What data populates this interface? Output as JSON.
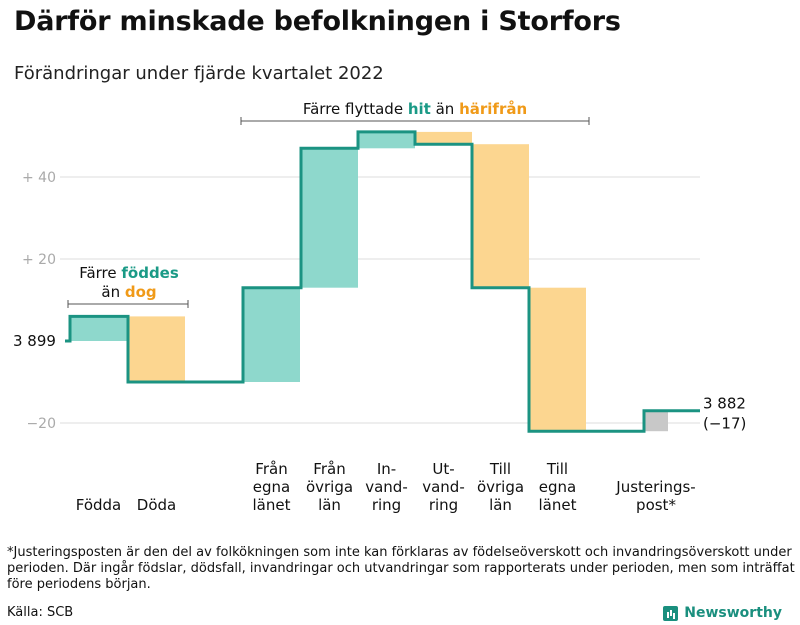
{
  "title": "Därför minskade befolkningen i Storfors",
  "subtitle": "Förändringar under fjärde kvartalet 2022",
  "chart_data": {
    "type": "waterfall",
    "start_value": 3899,
    "start_label": "3 899",
    "end_value": 3882,
    "end_label": "3 882",
    "end_change_label": "(−17)",
    "ylim": [
      -25,
      52
    ],
    "yticks": [
      {
        "value": 40,
        "label": "+ 40"
      },
      {
        "value": 20,
        "label": "+ 20"
      },
      {
        "value": -20,
        "label": "−20"
      }
    ],
    "grid": true,
    "steps": [
      {
        "label_lines": [
          "Födda"
        ],
        "change": 6,
        "kind": "in"
      },
      {
        "label_lines": [
          "Döda"
        ],
        "change": -16,
        "kind": "out"
      },
      {
        "label_lines": [
          "Från",
          "egna",
          "länet"
        ],
        "change": 23,
        "kind": "in"
      },
      {
        "label_lines": [
          "Från",
          "övriga",
          "län"
        ],
        "change": 34,
        "kind": "in"
      },
      {
        "label_lines": [
          "In-",
          "vand-",
          "ring"
        ],
        "change": 4,
        "kind": "in"
      },
      {
        "label_lines": [
          "Ut-",
          "vand-",
          "ring"
        ],
        "change": -3,
        "kind": "out"
      },
      {
        "label_lines": [
          "Till",
          "övriga",
          "län"
        ],
        "change": -35,
        "kind": "out"
      },
      {
        "label_lines": [
          "Till",
          "egna",
          "länet"
        ],
        "change": -35,
        "kind": "out"
      },
      {
        "label_lines": [
          "Justerings-",
          "post*"
        ],
        "change": 5,
        "kind": "adjust"
      }
    ],
    "annotations": [
      {
        "id": "births",
        "lines": [
          [
            "Färre ",
            "födde",
            "s"
          ],
          [
            "än ",
            "dog",
            ""
          ]
        ]
      },
      {
        "id": "moves",
        "parts": [
          "Färre flyttade ",
          "hit",
          " än ",
          "härifrån"
        ]
      }
    ],
    "colors": {
      "in": "#8ed8cc",
      "out": "#fcd690",
      "adjust": "#c8c8c8",
      "line": "#1b9382",
      "accent_in": "#1a9a86",
      "accent_out": "#f09a18",
      "grid": "#dddddd",
      "tick": "#aaaaaa"
    }
  },
  "footnote": "*Justeringsposten är den del av folkökningen som inte kan förklaras av födelseöverskott och invandringsöverskott under perioden. Där ingår födslar, dödsfall, invandringar och utvandringar som rapporterats under perioden, men som inträffat före periodens början.",
  "source": "Källa: SCB",
  "brand": "Newsworthy",
  "brand_icon": "bar-chart-icon"
}
